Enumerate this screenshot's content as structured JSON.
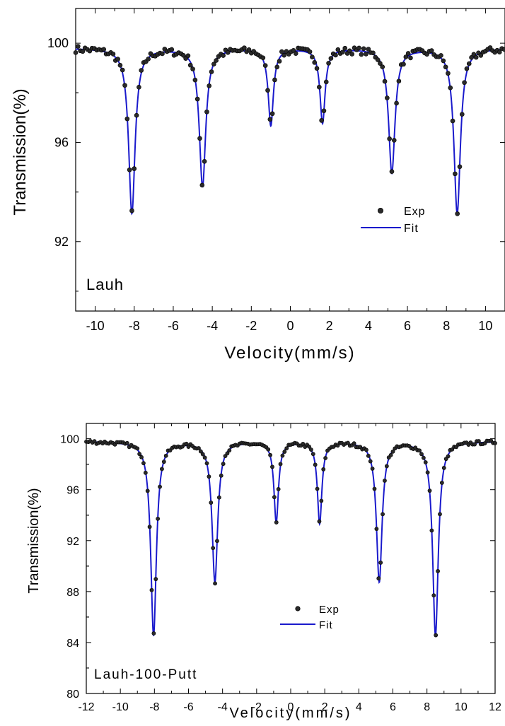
{
  "colors": {
    "fit": "#1a1acc",
    "exp_fill": "#2a2a2a",
    "exp_edge": "#000000"
  },
  "chart_data": [
    {
      "type": "scatter",
      "panel_label": "Lauh",
      "xlabel": "Velocity(mm/s)",
      "ylabel": "Transmission(%)",
      "xlim": [
        -11,
        11
      ],
      "ylim": [
        89.2,
        101.4
      ],
      "xticks": [
        -10,
        -8,
        -6,
        -4,
        -2,
        0,
        2,
        4,
        6,
        8,
        10
      ],
      "yticks": [
        92,
        96,
        100
      ],
      "baseline": 99.8,
      "peaks": [
        {
          "center": -8.12,
          "depth": 6.65,
          "hwhm": 0.2
        },
        {
          "center": -4.5,
          "depth": 5.55,
          "hwhm": 0.2
        },
        {
          "center": -1.0,
          "depth": 3.1,
          "hwhm": 0.16
        },
        {
          "center": 1.65,
          "depth": 3.0,
          "hwhm": 0.16
        },
        {
          "center": 5.2,
          "depth": 5.0,
          "hwhm": 0.2
        },
        {
          "center": 8.55,
          "depth": 6.65,
          "hwhm": 0.2
        }
      ],
      "series": [
        {
          "name": "Exp",
          "style": "points"
        },
        {
          "name": "Fit",
          "style": "line"
        }
      ],
      "legend": {
        "position": "right"
      }
    },
    {
      "type": "scatter",
      "panel_label": "Lauh-100-Putt",
      "xlabel": "Velocity(mm/s)",
      "ylabel": "Transmission(%)",
      "xlim": [
        -12,
        12
      ],
      "ylim": [
        80,
        101.2
      ],
      "xticks": [
        -12,
        -10,
        -8,
        -6,
        -4,
        -2,
        0,
        2,
        4,
        6,
        8,
        10,
        12
      ],
      "yticks": [
        80,
        84,
        88,
        92,
        96,
        100
      ],
      "baseline": 99.8,
      "peaks": [
        {
          "center": -8.05,
          "depth": 15.2,
          "hwhm": 0.2
        },
        {
          "center": -4.45,
          "depth": 11.0,
          "hwhm": 0.2
        },
        {
          "center": -0.85,
          "depth": 6.3,
          "hwhm": 0.16
        },
        {
          "center": 1.7,
          "depth": 6.4,
          "hwhm": 0.16
        },
        {
          "center": 5.2,
          "depth": 11.0,
          "hwhm": 0.2
        },
        {
          "center": 8.5,
          "depth": 15.2,
          "hwhm": 0.2
        }
      ],
      "series": [
        {
          "name": "Exp",
          "style": "points"
        },
        {
          "name": "Fit",
          "style": "line"
        }
      ],
      "legend": {
        "position": "lower-center"
      }
    }
  ]
}
